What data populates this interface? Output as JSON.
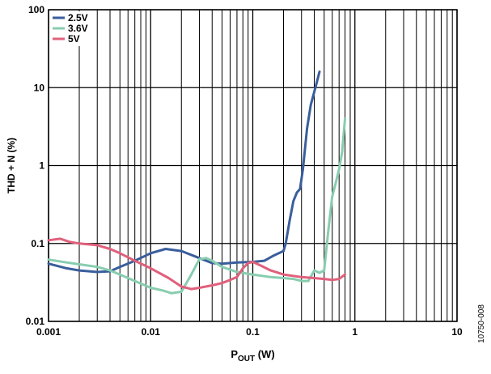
{
  "chart_data": {
    "type": "line",
    "xlabel_main": "P",
    "xlabel_sub": "OUT",
    "xlabel_unit": " (W)",
    "ylabel": "THD + N (%)",
    "x_scale": "log",
    "y_scale": "log",
    "xlim": [
      0.001,
      10
    ],
    "ylim": [
      0.01,
      100
    ],
    "x_ticks": [
      {
        "value": 0.001,
        "label": "0.001"
      },
      {
        "value": 0.01,
        "label": "0.01"
      },
      {
        "value": 0.1,
        "label": "0.1"
      },
      {
        "value": 1,
        "label": "1"
      },
      {
        "value": 10,
        "label": "10"
      }
    ],
    "y_ticks": [
      {
        "value": 0.01,
        "label": "0.01"
      },
      {
        "value": 0.1,
        "label": "0.1"
      },
      {
        "value": 1,
        "label": "1"
      },
      {
        "value": 10,
        "label": "10"
      },
      {
        "value": 100,
        "label": "100"
      }
    ],
    "grid": true,
    "legend_position": "top-left",
    "series": [
      {
        "name": "2.5V",
        "color": "#3a5e9c",
        "points": [
          [
            0.001,
            0.055
          ],
          [
            0.0015,
            0.048
          ],
          [
            0.002,
            0.045
          ],
          [
            0.0025,
            0.044
          ],
          [
            0.003,
            0.043
          ],
          [
            0.004,
            0.044
          ],
          [
            0.005,
            0.05
          ],
          [
            0.007,
            0.06
          ],
          [
            0.01,
            0.075
          ],
          [
            0.014,
            0.085
          ],
          [
            0.02,
            0.08
          ],
          [
            0.03,
            0.065
          ],
          [
            0.04,
            0.056
          ],
          [
            0.05,
            0.055
          ],
          [
            0.07,
            0.057
          ],
          [
            0.1,
            0.058
          ],
          [
            0.13,
            0.06
          ],
          [
            0.16,
            0.07
          ],
          [
            0.18,
            0.075
          ],
          [
            0.2,
            0.08
          ],
          [
            0.21,
            0.1
          ],
          [
            0.23,
            0.2
          ],
          [
            0.25,
            0.35
          ],
          [
            0.27,
            0.45
          ],
          [
            0.29,
            0.5
          ],
          [
            0.31,
            0.9
          ],
          [
            0.34,
            3
          ],
          [
            0.37,
            6
          ],
          [
            0.41,
            10
          ],
          [
            0.45,
            16
          ]
        ]
      },
      {
        "name": "3.6V",
        "color": "#88cdb0",
        "points": [
          [
            0.001,
            0.062
          ],
          [
            0.0015,
            0.057
          ],
          [
            0.002,
            0.054
          ],
          [
            0.003,
            0.05
          ],
          [
            0.004,
            0.045
          ],
          [
            0.005,
            0.04
          ],
          [
            0.007,
            0.033
          ],
          [
            0.01,
            0.027
          ],
          [
            0.013,
            0.025
          ],
          [
            0.016,
            0.023
          ],
          [
            0.02,
            0.024
          ],
          [
            0.025,
            0.04
          ],
          [
            0.03,
            0.063
          ],
          [
            0.035,
            0.065
          ],
          [
            0.04,
            0.06
          ],
          [
            0.05,
            0.05
          ],
          [
            0.07,
            0.043
          ],
          [
            0.1,
            0.04
          ],
          [
            0.15,
            0.037
          ],
          [
            0.2,
            0.036
          ],
          [
            0.25,
            0.035
          ],
          [
            0.3,
            0.033
          ],
          [
            0.35,
            0.033
          ],
          [
            0.4,
            0.045
          ],
          [
            0.45,
            0.042
          ],
          [
            0.5,
            0.045
          ],
          [
            0.55,
            0.15
          ],
          [
            0.6,
            0.4
          ],
          [
            0.65,
            0.6
          ],
          [
            0.7,
            0.9
          ],
          [
            0.75,
            1.5
          ],
          [
            0.8,
            4
          ]
        ]
      },
      {
        "name": "5V",
        "color": "#e0607c",
        "points": [
          [
            0.001,
            0.11
          ],
          [
            0.0013,
            0.115
          ],
          [
            0.0016,
            0.105
          ],
          [
            0.002,
            0.1
          ],
          [
            0.003,
            0.095
          ],
          [
            0.004,
            0.085
          ],
          [
            0.005,
            0.075
          ],
          [
            0.007,
            0.06
          ],
          [
            0.01,
            0.048
          ],
          [
            0.015,
            0.036
          ],
          [
            0.02,
            0.028
          ],
          [
            0.025,
            0.026
          ],
          [
            0.03,
            0.027
          ],
          [
            0.04,
            0.029
          ],
          [
            0.05,
            0.031
          ],
          [
            0.06,
            0.034
          ],
          [
            0.07,
            0.037
          ],
          [
            0.08,
            0.048
          ],
          [
            0.09,
            0.056
          ],
          [
            0.1,
            0.058
          ],
          [
            0.12,
            0.052
          ],
          [
            0.15,
            0.045
          ],
          [
            0.2,
            0.04
          ],
          [
            0.3,
            0.037
          ],
          [
            0.4,
            0.036
          ],
          [
            0.5,
            0.035
          ],
          [
            0.6,
            0.034
          ],
          [
            0.7,
            0.035
          ],
          [
            0.8,
            0.04
          ]
        ]
      }
    ]
  },
  "figure_id": "10750-008"
}
